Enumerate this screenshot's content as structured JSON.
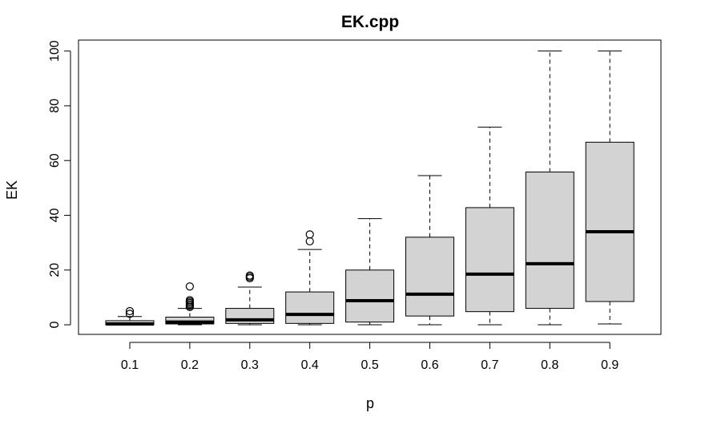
{
  "chart_data": {
    "type": "boxplot",
    "title": "EK.cpp",
    "xlabel": "p",
    "ylabel": "EK",
    "ylim": [
      -3.5,
      104
    ],
    "y_ticks": [
      0,
      20,
      40,
      60,
      80,
      100
    ],
    "categories": [
      "0.1",
      "0.2",
      "0.3",
      "0.4",
      "0.5",
      "0.6",
      "0.7",
      "0.8",
      "0.9"
    ],
    "box_color": "#d3d3d3",
    "grid": false,
    "boxes": [
      {
        "category": "0.1",
        "whisker_low": 0,
        "q1": 0,
        "median": 0.3,
        "q3": 1.5,
        "whisker_high": 3,
        "outliers": [
          4,
          5
        ]
      },
      {
        "category": "0.2",
        "whisker_low": 0,
        "q1": 0.3,
        "median": 1,
        "q3": 2.8,
        "whisker_high": 6,
        "outliers": [
          6.5,
          7,
          7.5,
          8,
          8.5,
          9,
          14
        ]
      },
      {
        "category": "0.3",
        "whisker_low": 0,
        "q1": 0.5,
        "median": 1.8,
        "q3": 6,
        "whisker_high": 13.8,
        "outliers": [
          17,
          17.5,
          18
        ]
      },
      {
        "category": "0.4",
        "whisker_low": 0,
        "q1": 0.5,
        "median": 3.8,
        "q3": 12,
        "whisker_high": 27.5,
        "outliers": [
          30.5,
          33
        ]
      },
      {
        "category": "0.5",
        "whisker_low": 0,
        "q1": 1,
        "median": 8.8,
        "q3": 20,
        "whisker_high": 38.8,
        "outliers": []
      },
      {
        "category": "0.6",
        "whisker_low": 0,
        "q1": 3.2,
        "median": 11.2,
        "q3": 32,
        "whisker_high": 54.5,
        "outliers": []
      },
      {
        "category": "0.7",
        "whisker_low": 0,
        "q1": 4.8,
        "median": 18.5,
        "q3": 42.8,
        "whisker_high": 72.2,
        "outliers": []
      },
      {
        "category": "0.8",
        "whisker_low": 0,
        "q1": 6,
        "median": 22.3,
        "q3": 55.8,
        "whisker_high": 100,
        "outliers": []
      },
      {
        "category": "0.9",
        "whisker_low": 0.3,
        "q1": 8.5,
        "median": 34,
        "q3": 66.7,
        "whisker_high": 100,
        "outliers": []
      }
    ]
  }
}
